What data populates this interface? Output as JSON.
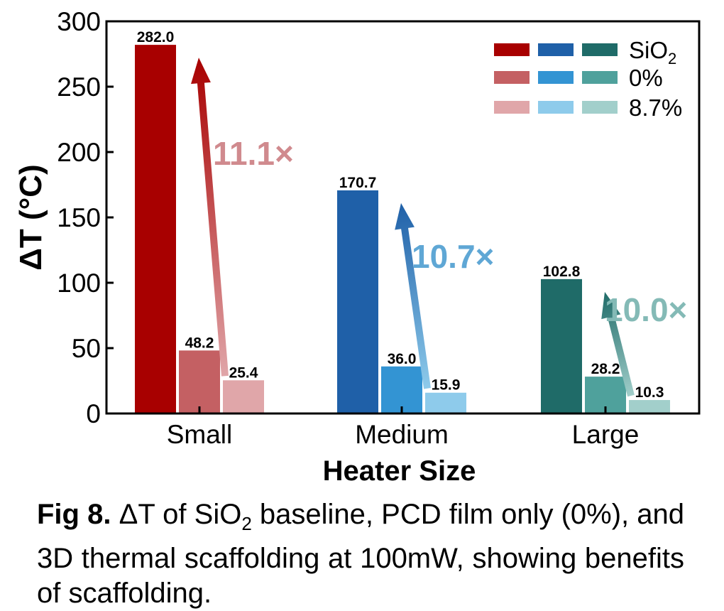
{
  "chart_data": {
    "type": "bar",
    "xlabel": "Heater Size",
    "ylabel": "ΔT (°C)",
    "ylim": [
      0,
      300
    ],
    "yticks": [
      0,
      50,
      100,
      150,
      200,
      250,
      300
    ],
    "categories": [
      "Small",
      "Medium",
      "Large"
    ],
    "series_labels": [
      "SiO",
      "0%",
      "8.7%"
    ],
    "series_subscript": [
      "2",
      "",
      ""
    ],
    "values": [
      [
        282.0,
        48.2,
        25.4
      ],
      [
        170.7,
        36.0,
        15.9
      ],
      [
        102.8,
        28.2,
        10.3
      ]
    ],
    "value_labels": [
      [
        "282.0",
        "48.2",
        "25.4"
      ],
      [
        "170.7",
        "36.0",
        "15.9"
      ],
      [
        "102.8",
        "28.2",
        "10.3"
      ]
    ],
    "colors": [
      [
        "#a80000",
        "#c46063",
        "#e0a6a9"
      ],
      [
        "#1f60a8",
        "#3394d3",
        "#8ecbeb"
      ],
      [
        "#1f6b68",
        "#4fa19c",
        "#a2cfcb"
      ]
    ],
    "ratio_labels": [
      "11.1×",
      "10.7×",
      "10.0×"
    ],
    "ratio_colors": [
      "#d08a8e",
      "#5fa7d5",
      "#84bab6"
    ],
    "legend_position": "top-right",
    "grid": false
  },
  "caption": {
    "fig_label": "Fig 8.",
    "text_before_sub": " ΔT of SiO",
    "subscript": "2",
    "text_after_sub": " baseline, PCD film only (0%), and 3D thermal scaffolding at 100mW, showing benefits of scaffolding."
  }
}
